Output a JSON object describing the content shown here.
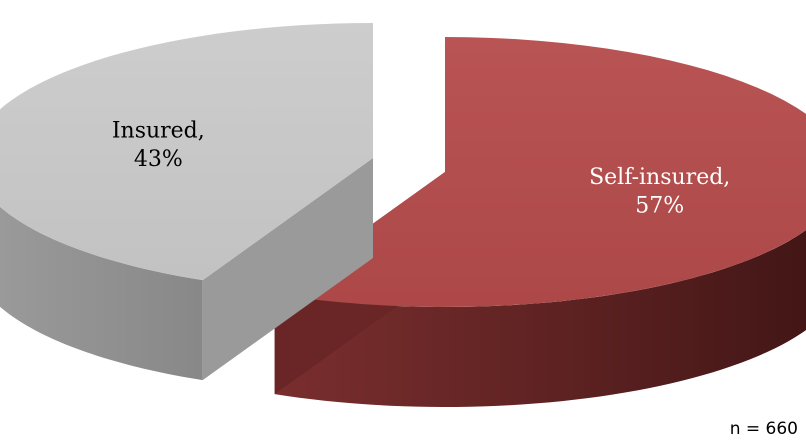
{
  "chart_data": {
    "type": "pie",
    "style": "3d-exploded",
    "slices": [
      {
        "label": "Self-insured",
        "value": 57,
        "display": "57%",
        "color": "#b24c4c"
      },
      {
        "label": "Insured",
        "value": 43,
        "display": "43%",
        "color": "#c8c8c8"
      }
    ],
    "sample_size": "n = 660"
  }
}
